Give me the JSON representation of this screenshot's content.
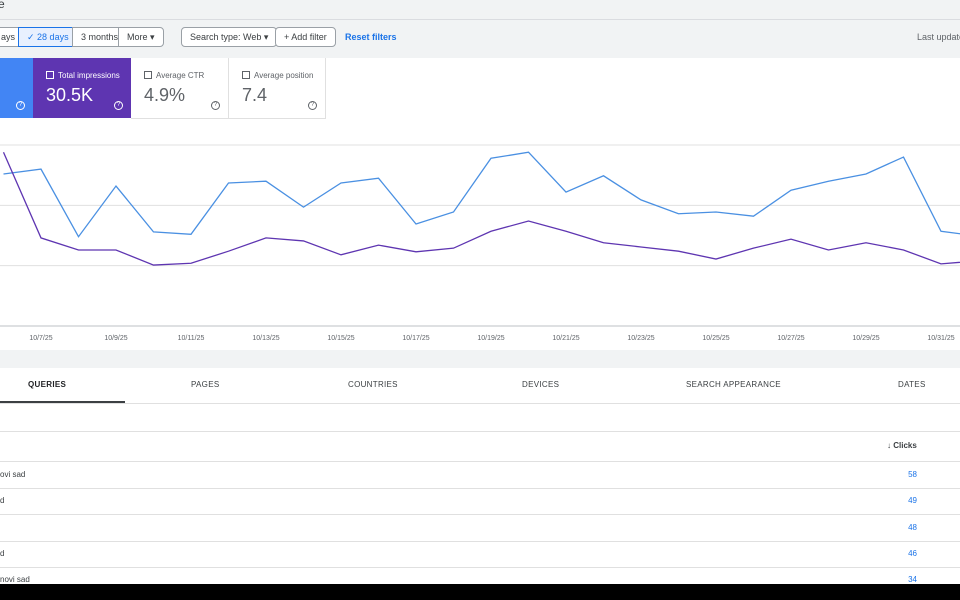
{
  "top_bar": {
    "title": "e"
  },
  "filters": {
    "ranges": [
      "ays",
      "28 days",
      "3 months",
      "More"
    ],
    "search_type": "Search type: Web",
    "add_filter": "Add filter",
    "reset": "Reset filters",
    "last_update": "Last update"
  },
  "cards": [
    {
      "label": "Total impressions",
      "value": "30.5K"
    },
    {
      "label": "Average CTR",
      "value": "4.9%"
    },
    {
      "label": "Average position",
      "value": "7.4"
    }
  ],
  "chart_data": {
    "type": "line",
    "categories": [
      null,
      "10/7/25",
      null,
      "10/9/25",
      null,
      "10/11/25",
      null,
      "10/13/25",
      null,
      "10/15/25",
      null,
      "10/17/25",
      null,
      "10/19/25",
      null,
      "10/21/25",
      null,
      "10/23/25",
      null,
      "10/25/25",
      null,
      "10/27/25",
      null,
      "10/29/25",
      null,
      "10/31/25",
      null
    ],
    "series": [
      {
        "color": "#4a90e2",
        "values": [
          2.52,
          2.6,
          1.48,
          2.32,
          1.56,
          1.52,
          2.37,
          2.4,
          1.97,
          2.37,
          2.45,
          1.69,
          1.89,
          2.78,
          2.88,
          2.22,
          2.49,
          2.09,
          1.86,
          1.89,
          1.82,
          2.25,
          2.4,
          2.52,
          2.8,
          1.57,
          1.49
        ]
      },
      {
        "color": "#5e35b1",
        "values": [
          2.88,
          1.46,
          1.26,
          1.26,
          1.01,
          1.04,
          1.24,
          1.46,
          1.41,
          1.18,
          1.34,
          1.23,
          1.29,
          1.57,
          1.74,
          1.57,
          1.38,
          1.31,
          1.24,
          1.11,
          1.29,
          1.44,
          1.26,
          1.38,
          1.26,
          1.03,
          1.08
        ]
      }
    ],
    "ylim": [
      0,
      3
    ],
    "yticks": [
      0,
      1,
      2,
      3
    ],
    "grid": true
  },
  "tabs": [
    "QUERIES",
    "PAGES",
    "COUNTRIES",
    "DEVICES",
    "SEARCH APPEARANCE",
    "DATES"
  ],
  "table": {
    "header": "Clicks",
    "rows": [
      {
        "query": "ovi sad",
        "clicks": 58
      },
      {
        "query": "d",
        "clicks": 49
      },
      {
        "clicks": 48
      },
      {
        "query": "d",
        "clicks": 46
      },
      {
        "query": "novi sad",
        "clicks": 34
      }
    ]
  }
}
